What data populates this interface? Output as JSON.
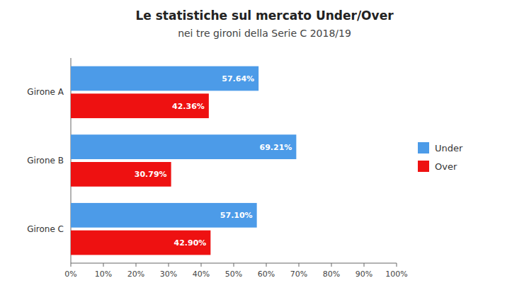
{
  "chart_data": {
    "type": "bar",
    "orientation": "horizontal",
    "title": "Le statistiche sul mercato Under/Over",
    "subtitle": "nei tre gironi della Serie C 2018/19",
    "categories": [
      "Girone A",
      "Girone B",
      "Girone C"
    ],
    "series": [
      {
        "name": "Under",
        "color": "#4C9BE8",
        "values": [
          57.64,
          69.21,
          57.1
        ],
        "value_labels": [
          "57.64%",
          "69.21%",
          "57.10%"
        ]
      },
      {
        "name": "Over",
        "color": "#EE1111",
        "values": [
          42.36,
          30.79,
          42.9
        ],
        "value_labels": [
          "42.36%",
          "30.79%",
          "42.90%"
        ]
      }
    ],
    "xlim": [
      0,
      100
    ],
    "xticks": [
      {
        "value": 0,
        "label": "0%"
      },
      {
        "value": 10,
        "label": "10%"
      },
      {
        "value": 20,
        "label": "20%"
      },
      {
        "value": 30,
        "label": "30%"
      },
      {
        "value": 40,
        "label": "40%"
      },
      {
        "value": 50,
        "label": "50%"
      },
      {
        "value": 60,
        "label": "60%"
      },
      {
        "value": 70,
        "label": "70%"
      },
      {
        "value": 80,
        "label": "80%"
      },
      {
        "value": 90,
        "label": "90%"
      },
      {
        "value": 100,
        "label": "100%"
      }
    ],
    "data_labels": true,
    "grid": false,
    "legend": "right"
  }
}
